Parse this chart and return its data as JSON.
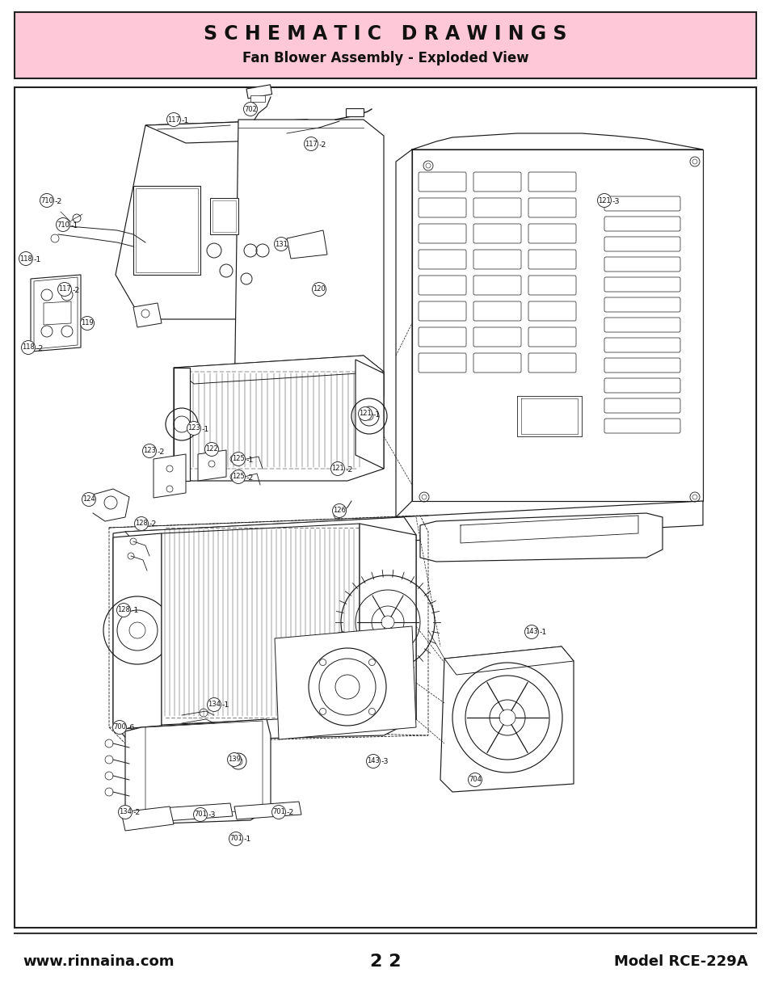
{
  "title_line1": "S C H E M A T I C   D R A W I N G S",
  "title_line2": "Fan Blower Assembly - Exploded View",
  "title_bg": "#ffc8d8",
  "title_border": "#222222",
  "page_bg": "#ffffff",
  "diagram_border": "#222222",
  "footer_left": "www.rinnaina.com",
  "footer_center": "2 2",
  "footer_right": "Model RCE-229A",
  "footer_color": "#111111",
  "outer_bg": "#ffffff",
  "title_fontsize": 17,
  "subtitle_fontsize": 12,
  "footer_fontsize": 13,
  "lc": "#1a1a1a",
  "lw": 0.9
}
